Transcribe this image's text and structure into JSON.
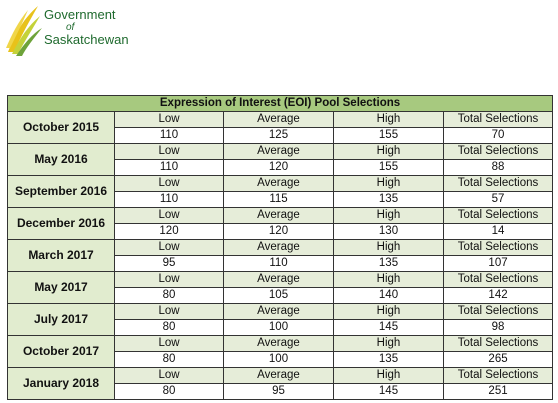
{
  "logo": {
    "line1": "Government",
    "line2": "of",
    "line3": "Saskatchewan",
    "icon": "wheat-icon"
  },
  "table": {
    "title": "Expression of Interest (EOI) Pool Selections",
    "columns": [
      "Low",
      "Average",
      "High",
      "Total Selections"
    ],
    "rows": [
      {
        "date": "October 2015",
        "low": "110",
        "average": "125",
        "high": "155",
        "total": "70"
      },
      {
        "date": "May 2016",
        "low": "110",
        "average": "120",
        "high": "155",
        "total": "88"
      },
      {
        "date": "September 2016",
        "low": "110",
        "average": "115",
        "high": "135",
        "total": "57"
      },
      {
        "date": "December 2016",
        "low": "120",
        "average": "120",
        "high": "130",
        "total": "14"
      },
      {
        "date": "March 2017",
        "low": "95",
        "average": "110",
        "high": "135",
        "total": "107"
      },
      {
        "date": "May 2017",
        "low": "80",
        "average": "105",
        "high": "140",
        "total": "142"
      },
      {
        "date": "July 2017",
        "low": "80",
        "average": "100",
        "high": "145",
        "total": "98"
      },
      {
        "date": "October 2017",
        "low": "80",
        "average": "100",
        "high": "135",
        "total": "265"
      },
      {
        "date": "January 2018",
        "low": "80",
        "average": "95",
        "high": "145",
        "total": "251"
      }
    ]
  },
  "colors": {
    "header": "#a7c97f",
    "date_cell": "#e1eccf",
    "brand_green": "#1f6a2e",
    "brand_yellow": "#e8c21a"
  }
}
